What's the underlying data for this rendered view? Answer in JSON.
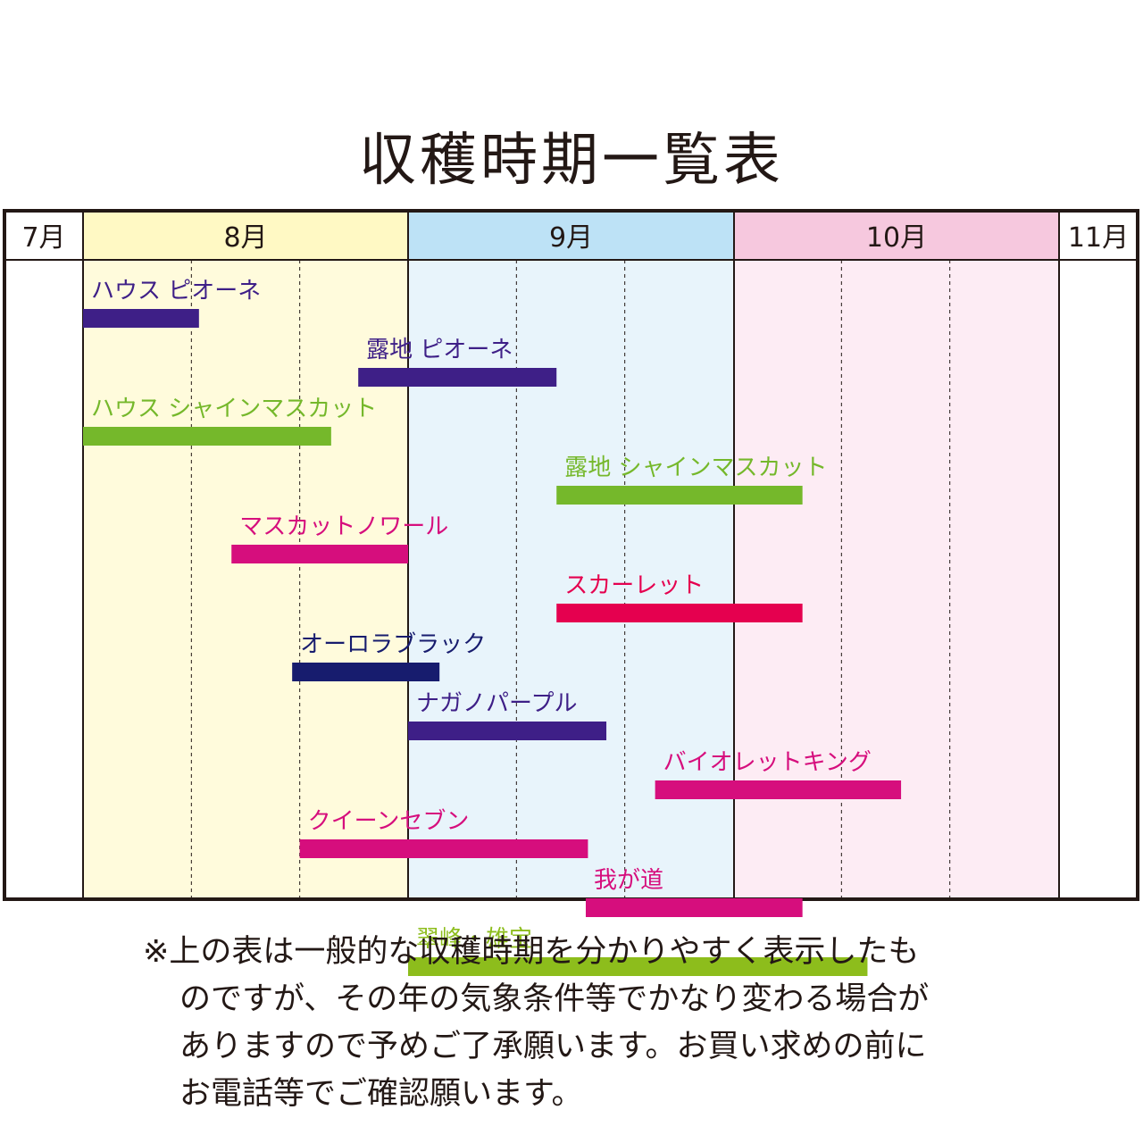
{
  "title": "収穫時期一覧表",
  "colors": {
    "frame": "#231815",
    "month_bg": {
      "8月": "#fffbdc",
      "9月": "#e8f4fb",
      "10月": "#fdecf4",
      "7月": "#ffffff",
      "11月": "#ffffff"
    },
    "header_bg": {
      "8月": "#fff9c4",
      "9月": "#bde2f6",
      "10月": "#f6c8de",
      "7月": "#ffffff",
      "11月": "#ffffff"
    }
  },
  "chart_data": {
    "type": "gantt",
    "title": "収穫時期一覧表",
    "axis": {
      "unit": "月",
      "months": [
        "7月",
        "8月",
        "9月",
        "10月",
        "11月"
      ],
      "subdivisions_per_month": 3,
      "range_in_thirds": [
        0,
        9
      ]
    },
    "series": [
      {
        "label": "ハウス ピオーネ",
        "start": 0.0,
        "end": 1.07,
        "color": "#3e1f87",
        "label_color": "#3e1f87"
      },
      {
        "label": "露地 ピオーネ",
        "start": 2.54,
        "end": 4.37,
        "color": "#3e1f87",
        "label_color": "#3e1f87"
      },
      {
        "label": "ハウス シャインマスカット",
        "start": 0.0,
        "end": 2.29,
        "color": "#75b82b",
        "label_color": "#75b82b"
      },
      {
        "label": "露地 シャインマスカット",
        "start": 4.37,
        "end": 6.64,
        "color": "#75b82b",
        "label_color": "#75b82b"
      },
      {
        "label": "マスカットノワール",
        "start": 1.37,
        "end": 3.0,
        "color": "#d60e7d",
        "label_color": "#d60e7d"
      },
      {
        "label": "スカーレット",
        "start": 4.37,
        "end": 6.64,
        "color": "#e5004f",
        "label_color": "#e5004f"
      },
      {
        "label": "オーロラブラック",
        "start": 1.93,
        "end": 3.29,
        "color": "#171c6e",
        "label_color": "#171c6e"
      },
      {
        "label": "ナガノパープル",
        "start": 3.0,
        "end": 4.83,
        "color": "#3e1f87",
        "label_color": "#3e1f87"
      },
      {
        "label": "バイオレットキング",
        "start": 5.28,
        "end": 7.55,
        "color": "#d60e7d",
        "label_color": "#d60e7d"
      },
      {
        "label": "クイーンセブン",
        "start": 2.0,
        "end": 4.66,
        "color": "#d60e7d",
        "label_color": "#d60e7d"
      },
      {
        "label": "我が道",
        "start": 4.64,
        "end": 6.64,
        "color": "#d60e7d",
        "label_color": "#d60e7d"
      },
      {
        "label": "翠峰・雄宝",
        "start": 3.0,
        "end": 7.24,
        "color": "#8dbd1c",
        "label_color": "#8dbd1c"
      }
    ]
  },
  "note": {
    "lines": [
      "※上の表は一般的な収穫時期を分かりやすく表示したも",
      "のですが、その年の気象条件等でかなり変わる場合が",
      "ありますので予めご了承願います。お買い求めの前に",
      "お電話等でご確認願います。"
    ]
  }
}
